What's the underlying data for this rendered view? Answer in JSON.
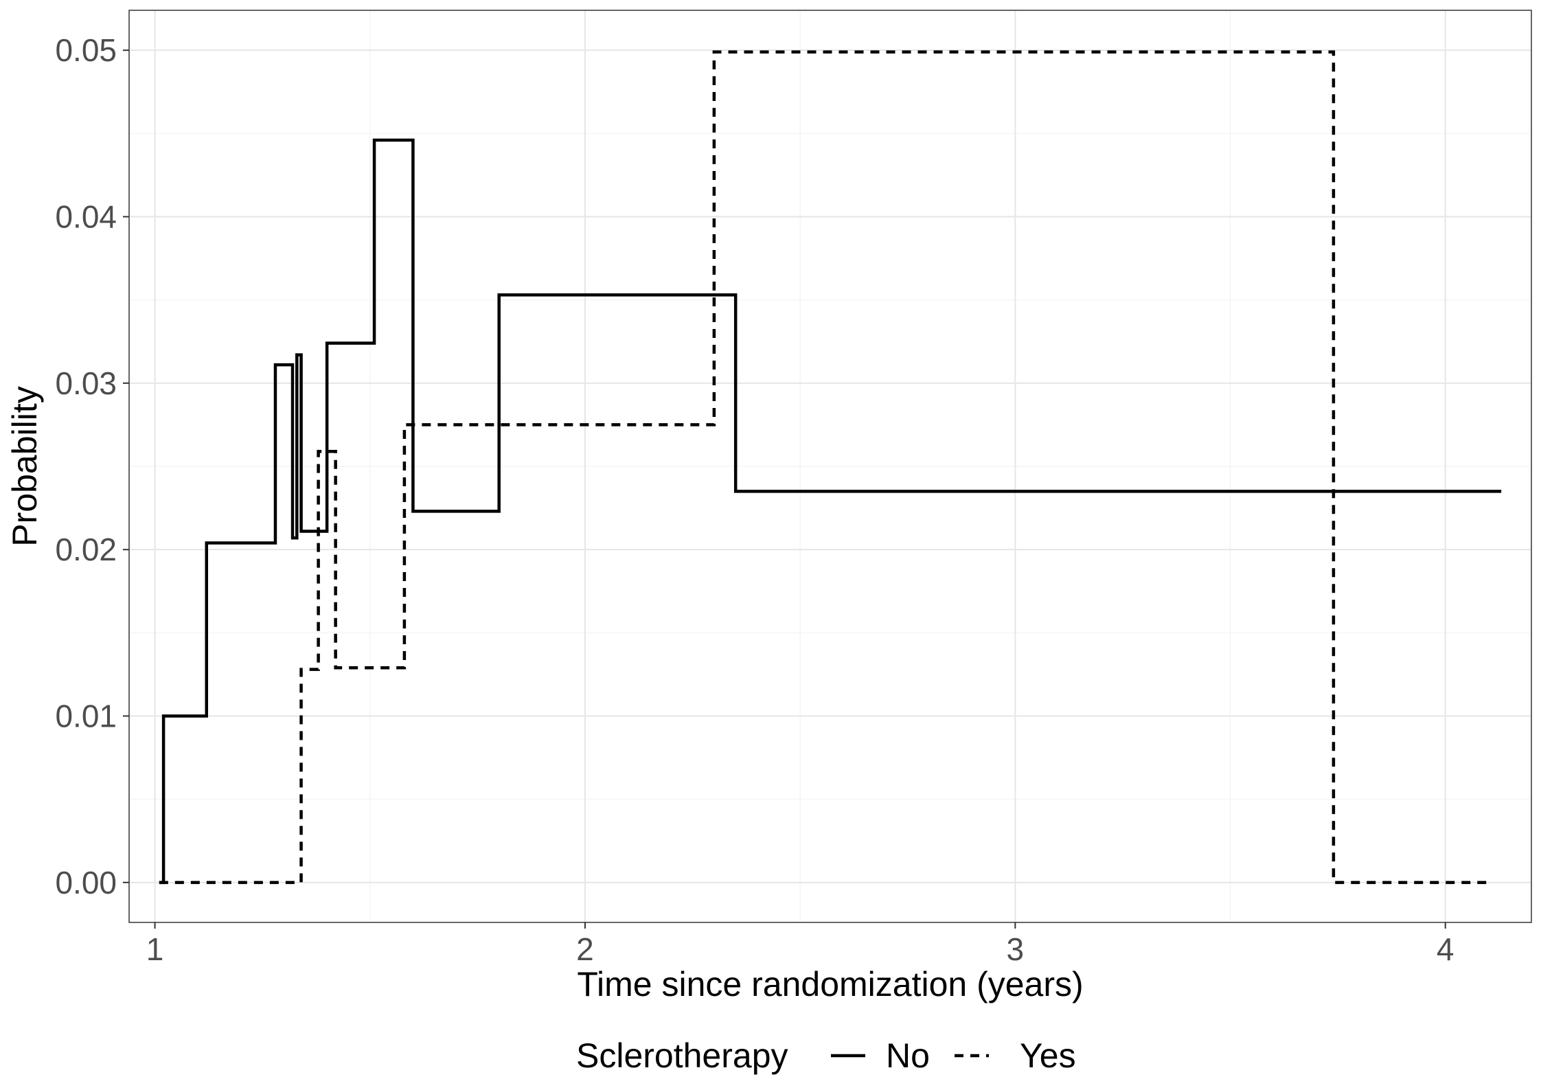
{
  "chart_data": {
    "type": "line",
    "step": true,
    "xlabel": "Time since randomization (years)",
    "ylabel": "Probability",
    "xlim": [
      0.94,
      4.2
    ],
    "ylim": [
      -0.0024,
      0.0524
    ],
    "x_ticks": [
      1,
      2,
      3,
      4
    ],
    "x_tick_labels": [
      "1",
      "2",
      "3",
      "4"
    ],
    "y_ticks": [
      0,
      0.01,
      0.02,
      0.03,
      0.04,
      0.05
    ],
    "y_tick_labels": [
      "0.00",
      "0.01",
      "0.02",
      "0.03",
      "0.04",
      "0.05"
    ],
    "grid": true,
    "legend": {
      "title": "Sclerotherapy",
      "position": "bottom"
    },
    "series": [
      {
        "name": "No",
        "linetype": "solid",
        "color": "#000000",
        "x": [
          1.01,
          1.02,
          1.12,
          1.28,
          1.32,
          1.33,
          1.34,
          1.4,
          1.51,
          1.51,
          1.6,
          1.8,
          2.35,
          4.13
        ],
        "y": [
          0.0,
          0.01,
          0.0204,
          0.0311,
          0.0207,
          0.0317,
          0.0211,
          0.0324,
          0.0335,
          0.0446,
          0.0223,
          0.0353,
          0.0235,
          0.0235
        ]
      },
      {
        "name": "Yes",
        "linetype": "dashed",
        "color": "#000000",
        "x": [
          1.01,
          1.34,
          1.38,
          1.42,
          1.58,
          2.3,
          3.74,
          4.1
        ],
        "y": [
          0.0,
          0.0128,
          0.0259,
          0.0129,
          0.0275,
          0.0499,
          0.0,
          0.0
        ]
      }
    ]
  }
}
